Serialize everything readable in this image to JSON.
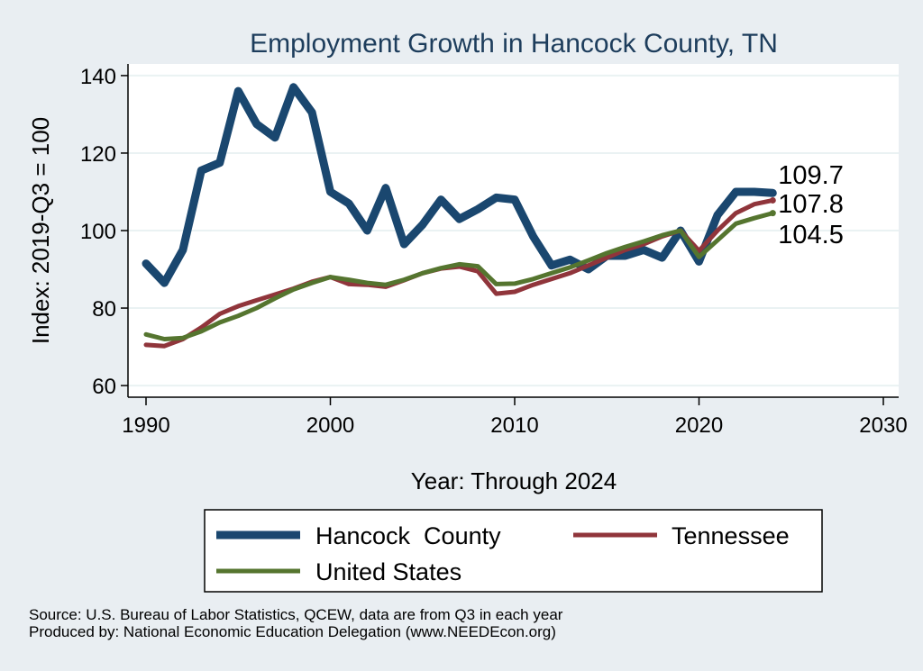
{
  "chart_data": {
    "type": "line",
    "title": "Employment Growth in Hancock County, TN",
    "xlabel": "Year: Through 2024",
    "ylabel": "Index: 2019-Q3 = 100",
    "xlim": [
      1990,
      2030
    ],
    "ylim": [
      57,
      143
    ],
    "xticks": [
      1990,
      2000,
      2010,
      2020,
      2030
    ],
    "yticks": [
      60,
      80,
      100,
      120,
      140
    ],
    "x": [
      1990,
      1991,
      1992,
      1993,
      1994,
      1995,
      1996,
      1997,
      1998,
      1999,
      2000,
      2001,
      2002,
      2003,
      2004,
      2005,
      2006,
      2007,
      2008,
      2009,
      2010,
      2011,
      2012,
      2013,
      2014,
      2015,
      2016,
      2017,
      2018,
      2019,
      2020,
      2021,
      2022,
      2023,
      2024
    ],
    "series": [
      {
        "name": "Hancock  County",
        "color": "#1a476f",
        "values": [
          91.5,
          86.5,
          95,
          115.5,
          117.5,
          136,
          127.5,
          124,
          137,
          130.5,
          110,
          107,
          100,
          111,
          96.5,
          101.5,
          108,
          103,
          105.5,
          108.5,
          108,
          98.5,
          91,
          92.5,
          90,
          93.5,
          93.5,
          95,
          93,
          100,
          92,
          104,
          110,
          110,
          109.7
        ],
        "end_label": "109.7"
      },
      {
        "name": "Tennessee",
        "color": "#90353b",
        "values": [
          70.5,
          70.2,
          72,
          75,
          78.5,
          80.5,
          82,
          83.5,
          85,
          86.8,
          88,
          86.2,
          86,
          85.5,
          87.2,
          89,
          90.2,
          90.7,
          89.5,
          83.7,
          84.2,
          86,
          87.5,
          89,
          91,
          93,
          95,
          96.5,
          98.5,
          100,
          94.8,
          100,
          104.5,
          106.8,
          107.8
        ],
        "end_label": "107.8"
      },
      {
        "name": "United States",
        "color": "#55752f",
        "values": [
          73.2,
          72,
          72.3,
          74,
          76.3,
          78,
          80,
          82.5,
          84.8,
          86.5,
          88,
          87.3,
          86.5,
          86,
          87.3,
          89,
          90.3,
          91.3,
          90.8,
          86.2,
          86.3,
          87.5,
          89,
          90.5,
          92.3,
          94.2,
          95.8,
          97.2,
          98.8,
          100,
          93.2,
          97.5,
          101.8,
          103.2,
          104.5
        ],
        "end_label": "104.5"
      }
    ],
    "legend": {
      "placement": "bottom",
      "entries": [
        "Hancock  County",
        "Tennessee",
        "United States"
      ]
    }
  },
  "footer": {
    "source": "Source: U.S. Bureau of Labor Statistics, QCEW, data are from Q3 in each year",
    "produced_by": "Produced by: National Economic Education Delegation (www.NEEDEcon.org)"
  }
}
